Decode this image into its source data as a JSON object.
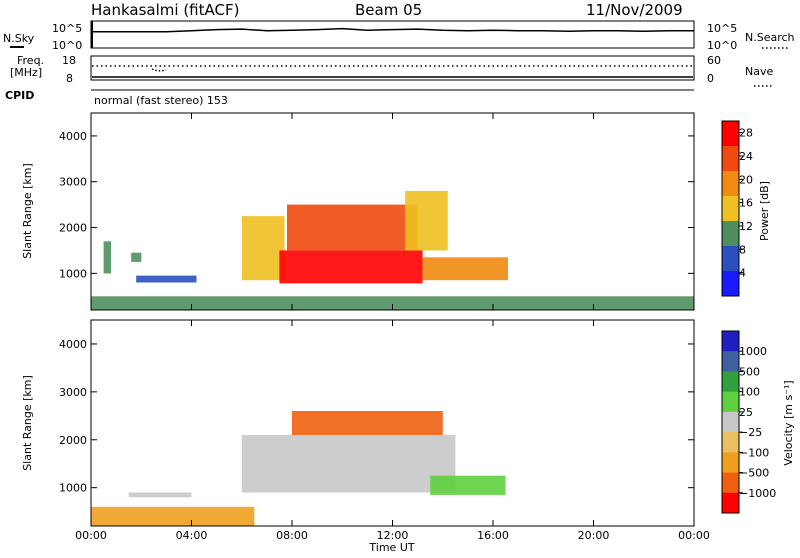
{
  "header": {
    "station": "Hankasalmi (fitACF)",
    "beam": "Beam 05",
    "date": "11/Nov/2009"
  },
  "noise_panel": {
    "left_label": "N.Sky",
    "right_label": "N.Search",
    "left_ticks": [
      "10^5",
      "10^0"
    ],
    "right_ticks": [
      "10^5",
      "10^0"
    ]
  },
  "freq_panel": {
    "left_label_1": "Freq.",
    "left_label_2": "[MHz]",
    "right_label": "Nave",
    "left_ticks": [
      "18",
      "8"
    ],
    "right_ticks": [
      "60",
      "0"
    ]
  },
  "cpid_panel": {
    "label": "CPID",
    "text": "normal (fast stereo) 153"
  },
  "x_axis": {
    "label": "Time UT",
    "ticks": [
      "00:00",
      "04:00",
      "08:00",
      "12:00",
      "16:00",
      "20:00",
      "00:00"
    ]
  },
  "power_panel": {
    "ylabel": "Slant Range [km]",
    "yticks": [
      "1000",
      "2000",
      "3000",
      "4000"
    ],
    "colorbar_label": "Power [dB]",
    "colorbar_ticks": [
      "4",
      "8",
      "12",
      "16",
      "20",
      "24",
      "28"
    ]
  },
  "velocity_panel": {
    "ylabel": "Slant Range [km]",
    "yticks": [
      "1000",
      "2000",
      "3000",
      "4000"
    ],
    "colorbar_label": "Velocity [m s⁻¹]",
    "colorbar_ticks": [
      "1000",
      "500",
      "100",
      "25",
      "−25",
      "−100",
      "−500",
      "−1000"
    ]
  },
  "chart_data": [
    {
      "type": "line",
      "x_unit": "hours UT",
      "xlim": [
        0,
        24
      ],
      "series": [
        {
          "name": "N.Sky",
          "x": [
            0,
            1,
            2,
            3,
            4,
            5,
            6,
            7,
            8,
            9,
            10,
            11,
            12,
            13,
            14,
            15,
            16,
            17,
            18,
            19,
            20,
            21,
            22,
            23,
            24
          ],
          "values": [
            3,
            3,
            3,
            3,
            3.2,
            3.4,
            3.5,
            3.2,
            3.3,
            3.4,
            3.6,
            3.3,
            3.4,
            3.5,
            3.3,
            3.2,
            3.3,
            3.2,
            3.2,
            3.1,
            3.2,
            3.2,
            3.1,
            3.2,
            3.2
          ]
        }
      ]
    },
    {
      "type": "heatmap",
      "xlim": [
        0,
        24
      ],
      "ylim": [
        200,
        4500
      ],
      "colorbar_range": [
        0,
        30
      ],
      "regions": [
        {
          "t0": 6.0,
          "t1": 7.7,
          "r0": 850,
          "r1": 2250,
          "level": 14
        },
        {
          "t0": 7.5,
          "t1": 13.2,
          "r0": 780,
          "r1": 1500,
          "level": 28
        },
        {
          "t0": 7.8,
          "t1": 13.0,
          "r0": 1500,
          "r1": 2500,
          "level": 24
        },
        {
          "t0": 12.5,
          "t1": 14.2,
          "r0": 1500,
          "r1": 2800,
          "level": 16
        },
        {
          "t0": 13.2,
          "t1": 16.6,
          "r0": 850,
          "r1": 1350,
          "level": 20
        },
        {
          "t0": 1.8,
          "t1": 4.2,
          "r0": 800,
          "r1": 950,
          "level": 8
        },
        {
          "t0": 0.5,
          "t1": 0.8,
          "r0": 1000,
          "r1": 1700,
          "level": 10
        },
        {
          "t0": 1.6,
          "t1": 2.0,
          "r0": 1250,
          "r1": 1450,
          "level": 12
        },
        {
          "t0": 0,
          "t1": 24,
          "r0": 200,
          "r1": 500,
          "level": 10
        }
      ]
    },
    {
      "type": "heatmap",
      "xlim": [
        0,
        24
      ],
      "ylim": [
        200,
        4500
      ],
      "colorbar_range": [
        -1000,
        1000
      ],
      "regions": [
        {
          "t0": 6.0,
          "t1": 14.5,
          "r0": 900,
          "r1": 2100,
          "level": 0
        },
        {
          "t0": 8.0,
          "t1": 14.0,
          "r0": 2100,
          "r1": 2600,
          "level": -300
        },
        {
          "t0": 13.5,
          "t1": 16.5,
          "r0": 850,
          "r1": 1250,
          "level": 80
        },
        {
          "t0": 1.5,
          "t1": 4.0,
          "r0": 800,
          "r1": 900,
          "level": 0
        },
        {
          "t0": 0,
          "t1": 6.5,
          "r0": 200,
          "r1": 600,
          "level": -60
        }
      ]
    }
  ]
}
